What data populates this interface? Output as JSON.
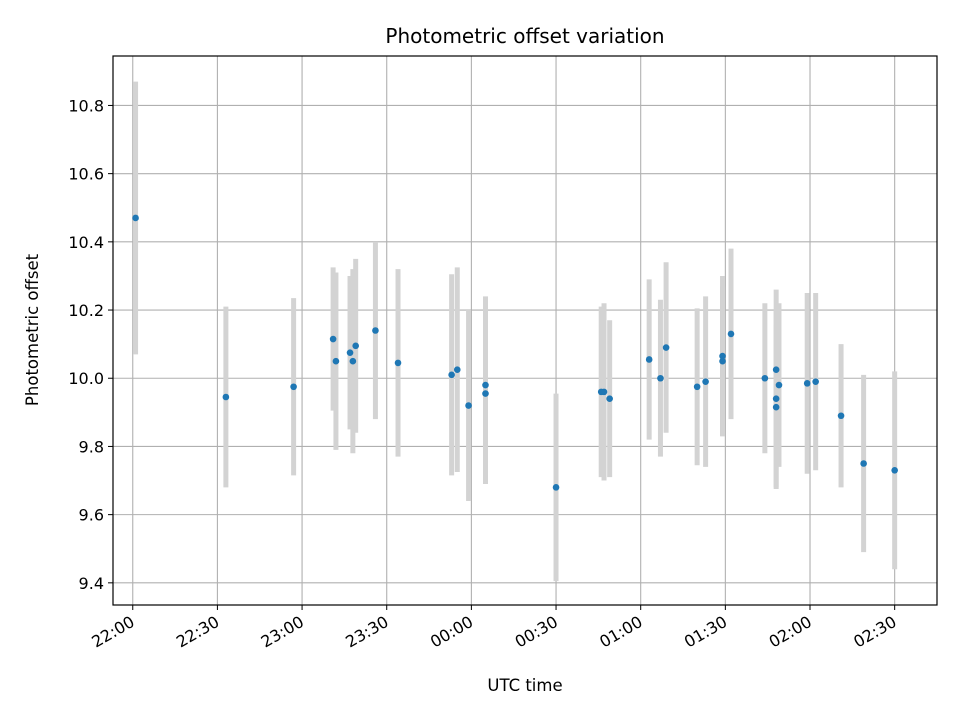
{
  "chart_data": {
    "type": "scatter",
    "title": "Photometric offset variation",
    "xlabel": "UTC time",
    "ylabel": "Photometric offset",
    "x_axis_type": "time",
    "xlim": [
      "21:53",
      "02:45"
    ],
    "ylim": [
      9.335,
      10.945
    ],
    "grid": true,
    "x_ticks": [
      "22:00",
      "22:30",
      "23:00",
      "23:30",
      "00:00",
      "00:30",
      "01:00",
      "01:30",
      "02:00",
      "02:30"
    ],
    "y_ticks": [
      9.4,
      9.6,
      9.8,
      10.0,
      10.2,
      10.4,
      10.6,
      10.8
    ],
    "y_tick_labels": [
      "9.4",
      "9.6",
      "9.8",
      "10.0",
      "10.2",
      "10.4",
      "10.6",
      "10.8"
    ],
    "marker_color": "#1f77b4",
    "errorbar_color": "#d3d3d3",
    "points": [
      {
        "t": "22:01",
        "y": 10.47,
        "err": 0.4
      },
      {
        "t": "22:33",
        "y": 9.945,
        "err": 0.265
      },
      {
        "t": "22:57",
        "y": 9.975,
        "err": 0.26
      },
      {
        "t": "23:11",
        "y": 10.115,
        "err": 0.21
      },
      {
        "t": "23:12",
        "y": 10.05,
        "err": 0.26
      },
      {
        "t": "23:17",
        "y": 10.075,
        "err": 0.225
      },
      {
        "t": "23:18",
        "y": 10.05,
        "err": 0.27
      },
      {
        "t": "23:19",
        "y": 10.095,
        "err": 0.255
      },
      {
        "t": "23:26",
        "y": 10.14,
        "err": 0.26
      },
      {
        "t": "23:34",
        "y": 10.045,
        "err": 0.275
      },
      {
        "t": "23:53",
        "y": 10.01,
        "err": 0.295
      },
      {
        "t": "23:55",
        "y": 10.025,
        "err": 0.3
      },
      {
        "t": "23:59",
        "y": 9.92,
        "err": 0.28
      },
      {
        "t": "00:05",
        "y": 9.955,
        "err": 0.265
      },
      {
        "t": "00:05",
        "y": 9.98,
        "err": 0.26
      },
      {
        "t": "00:30",
        "y": 9.68,
        "err": 0.275
      },
      {
        "t": "00:46",
        "y": 9.96,
        "err": 0.25
      },
      {
        "t": "00:47",
        "y": 9.96,
        "err": 0.26
      },
      {
        "t": "00:49",
        "y": 9.94,
        "err": 0.23
      },
      {
        "t": "01:03",
        "y": 10.055,
        "err": 0.235
      },
      {
        "t": "01:07",
        "y": 10.0,
        "err": 0.23
      },
      {
        "t": "01:09",
        "y": 10.09,
        "err": 0.25
      },
      {
        "t": "01:20",
        "y": 9.975,
        "err": 0.23
      },
      {
        "t": "01:23",
        "y": 9.99,
        "err": 0.25
      },
      {
        "t": "01:29",
        "y": 10.065,
        "err": 0.235
      },
      {
        "t": "01:29",
        "y": 10.05,
        "err": 0.22
      },
      {
        "t": "01:32",
        "y": 10.13,
        "err": 0.25
      },
      {
        "t": "01:44",
        "y": 10.0,
        "err": 0.22
      },
      {
        "t": "01:48",
        "y": 10.025,
        "err": 0.235
      },
      {
        "t": "01:48",
        "y": 9.94,
        "err": 0.26
      },
      {
        "t": "01:48",
        "y": 9.915,
        "err": 0.24
      },
      {
        "t": "01:49",
        "y": 9.98,
        "err": 0.24
      },
      {
        "t": "01:59",
        "y": 9.985,
        "err": 0.265
      },
      {
        "t": "02:02",
        "y": 9.99,
        "err": 0.26
      },
      {
        "t": "02:11",
        "y": 9.89,
        "err": 0.21
      },
      {
        "t": "02:19",
        "y": 9.75,
        "err": 0.26
      },
      {
        "t": "02:30",
        "y": 9.73,
        "err": 0.29
      }
    ]
  }
}
